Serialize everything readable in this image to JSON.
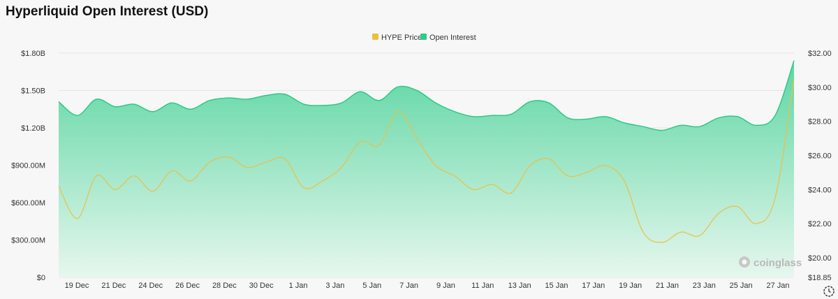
{
  "title": "Hyperliquid Open Interest (USD)",
  "watermark": "coinglass",
  "colors": {
    "price": "#eac044",
    "oi": "#2ec98c",
    "oi_fill_top": "#5dd6a3",
    "oi_fill_bottom": "#e6f7ee",
    "grid": "#e4e4e4"
  },
  "chart_data": {
    "type": "area",
    "title": "Hyperliquid Open Interest (USD)",
    "legend": {
      "position": "top-center",
      "entries": [
        "HYPE Price",
        "Open Interest"
      ]
    },
    "x_labels": [
      "19 Dec",
      "21 Dec",
      "24 Dec",
      "26 Dec",
      "28 Dec",
      "30 Dec",
      "1 Jan",
      "3 Jan",
      "5 Jan",
      "7 Jan",
      "9 Jan",
      "11 Jan",
      "13 Jan",
      "15 Jan",
      "17 Jan",
      "19 Jan",
      "21 Jan",
      "23 Jan",
      "25 Jan",
      "27 Jan"
    ],
    "y_left": {
      "label": "Open Interest",
      "ticks": [
        "$0",
        "$300.00M",
        "$600.00M",
        "$900.00M",
        "$1.20B",
        "$1.50B",
        "$1.80B"
      ],
      "range": [
        0,
        1800000000
      ]
    },
    "y_right": {
      "label": "HYPE Price",
      "ticks": [
        "$18.85",
        "$20.00",
        "$22.00",
        "$24.00",
        "$26.00",
        "$28.00",
        "$30.00",
        "$32.00"
      ],
      "range": [
        18.85,
        32
      ]
    },
    "grid": "horizontal",
    "series": [
      {
        "name": "Open Interest",
        "axis": "left",
        "values": [
          1410000000,
          1300000000,
          1430000000,
          1370000000,
          1390000000,
          1330000000,
          1400000000,
          1350000000,
          1420000000,
          1440000000,
          1430000000,
          1460000000,
          1470000000,
          1390000000,
          1380000000,
          1400000000,
          1490000000,
          1420000000,
          1530000000,
          1500000000,
          1400000000,
          1330000000,
          1290000000,
          1300000000,
          1310000000,
          1410000000,
          1400000000,
          1280000000,
          1270000000,
          1290000000,
          1240000000,
          1210000000,
          1180000000,
          1220000000,
          1210000000,
          1280000000,
          1290000000,
          1220000000,
          1300000000,
          1740000000
        ]
      },
      {
        "name": "HYPE Price",
        "axis": "right",
        "values": [
          24.2,
          22.3,
          24.8,
          24.0,
          24.8,
          23.9,
          25.1,
          24.5,
          25.6,
          25.9,
          25.3,
          25.6,
          25.8,
          24.1,
          24.5,
          25.3,
          26.8,
          26.6,
          28.6,
          27.0,
          25.4,
          24.8,
          24.0,
          24.3,
          23.8,
          25.4,
          25.8,
          24.8,
          25.0,
          25.4,
          24.5,
          21.5,
          20.9,
          21.5,
          21.3,
          22.6,
          23.0,
          22.0,
          23.5,
          30.5
        ]
      }
    ]
  }
}
